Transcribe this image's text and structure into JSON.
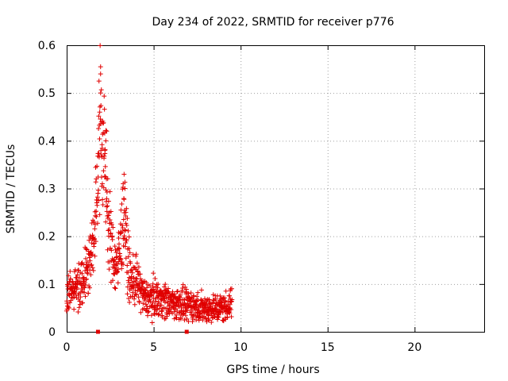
{
  "chart_data": {
    "type": "scatter",
    "title": "Day 234 of 2022, SRMTID for receiver p776",
    "xlabel": "GPS time / hours",
    "ylabel": "SRMTID / TECUs",
    "xlim": [
      0,
      24
    ],
    "ylim": [
      0,
      0.6
    ],
    "xticks": [
      0,
      5,
      10,
      15,
      20
    ],
    "xtick_labels": [
      "0",
      "5",
      "10",
      "15",
      "20"
    ],
    "yticks": [
      0,
      0.1,
      0.2,
      0.3,
      0.4,
      0.5,
      0.6
    ],
    "ytick_labels": [
      "0",
      "0.1",
      "0.2",
      "0.3",
      "0.4",
      "0.5",
      "0.6"
    ],
    "grid": true,
    "marker": "+",
    "color": "#e00000",
    "series": [
      {
        "name": "SRMTID",
        "envelope": [
          [
            0.0,
            0.08
          ],
          [
            0.2,
            0.08
          ],
          [
            0.4,
            0.09
          ],
          [
            0.6,
            0.1
          ],
          [
            0.8,
            0.1
          ],
          [
            1.0,
            0.12
          ],
          [
            1.2,
            0.14
          ],
          [
            1.4,
            0.16
          ],
          [
            1.6,
            0.2
          ],
          [
            1.75,
            0.27
          ],
          [
            1.85,
            0.42
          ],
          [
            1.95,
            0.5
          ],
          [
            2.05,
            0.4
          ],
          [
            2.15,
            0.36
          ],
          [
            2.25,
            0.33
          ],
          [
            2.4,
            0.22
          ],
          [
            2.6,
            0.17
          ],
          [
            2.8,
            0.14
          ],
          [
            3.0,
            0.15
          ],
          [
            3.2,
            0.22
          ],
          [
            3.3,
            0.27
          ],
          [
            3.45,
            0.17
          ],
          [
            3.6,
            0.12
          ],
          [
            3.8,
            0.1
          ],
          [
            4.0,
            0.11
          ],
          [
            4.2,
            0.09
          ],
          [
            4.5,
            0.07
          ],
          [
            4.8,
            0.07
          ],
          [
            5.0,
            0.07
          ],
          [
            5.5,
            0.07
          ],
          [
            6.0,
            0.06
          ],
          [
            6.5,
            0.06
          ],
          [
            6.9,
            0.05
          ],
          [
            7.1,
            0.06
          ],
          [
            7.5,
            0.05
          ],
          [
            8.0,
            0.05
          ],
          [
            8.5,
            0.05
          ],
          [
            9.0,
            0.05
          ],
          [
            9.5,
            0.06
          ]
        ],
        "peaks": [
          [
            1.95,
            0.555
          ],
          [
            1.95,
            0.54
          ],
          [
            1.95,
            0.5
          ],
          [
            1.9,
            0.46
          ],
          [
            2.0,
            0.44
          ],
          [
            2.3,
            0.42
          ],
          [
            2.25,
            0.4
          ],
          [
            2.2,
            0.38
          ],
          [
            3.3,
            0.33
          ],
          [
            3.25,
            0.31
          ],
          [
            3.35,
            0.3
          ],
          [
            1.8,
            0.29
          ],
          [
            1.85,
            0.275
          ],
          [
            3.4,
            0.25
          ],
          [
            2.05,
            0.31
          ]
        ]
      }
    ],
    "range_markers_x": [
      1.8,
      6.9
    ]
  }
}
